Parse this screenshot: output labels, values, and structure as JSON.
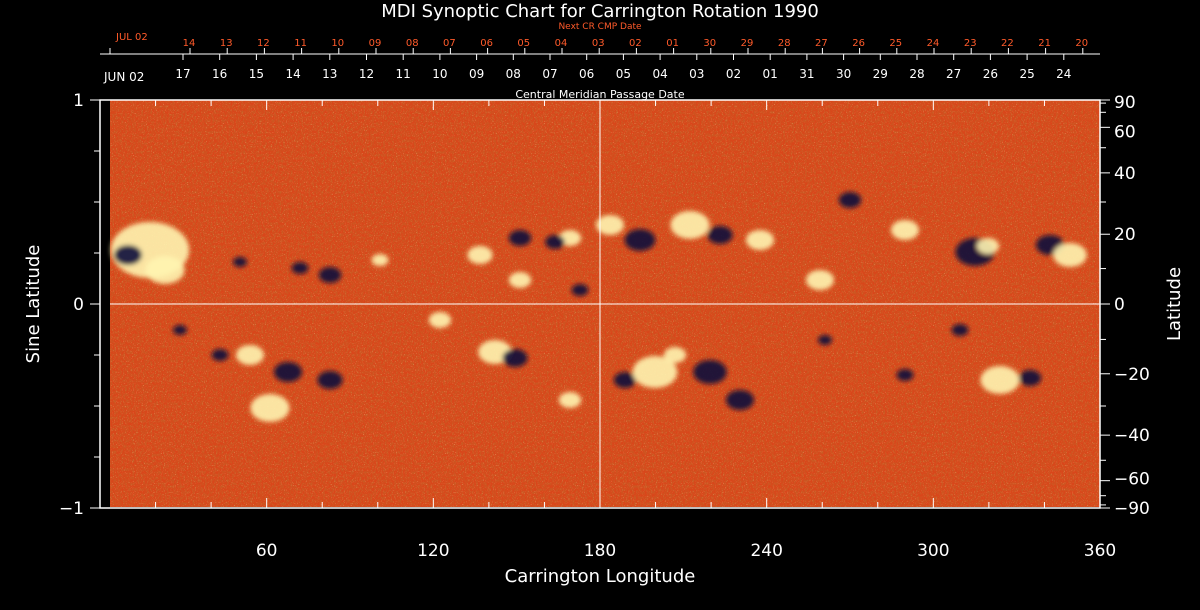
{
  "title": "MDI Synoptic Chart for Carrington Rotation 1990",
  "next_cr_label": "Next CR CMP Date",
  "cmp_label": "Central Meridian Passage Date",
  "next_cr_start_label": "JUL 02",
  "cmp_start_label": "JUN 02",
  "next_cr_dates": [
    "14",
    "13",
    "12",
    "11",
    "10",
    "09",
    "08",
    "07",
    "06",
    "05",
    "04",
    "03",
    "02",
    "01",
    "30",
    "29",
    "28",
    "27",
    "26",
    "25",
    "24",
    "23",
    "22",
    "21",
    "20"
  ],
  "cmp_dates": [
    "17",
    "16",
    "15",
    "14",
    "13",
    "12",
    "11",
    "10",
    "09",
    "08",
    "07",
    "06",
    "05",
    "04",
    "03",
    "02",
    "01",
    "31",
    "30",
    "29",
    "28",
    "27",
    "26",
    "25",
    "24"
  ],
  "x_axis": {
    "label": "Carrington Longitude",
    "ticks": [
      60,
      120,
      180,
      240,
      300,
      360
    ],
    "range": [
      0,
      360
    ]
  },
  "y_axis_left": {
    "label": "Sine Latitude",
    "ticks": [
      "1",
      "0",
      "−1"
    ]
  },
  "y_axis_right": {
    "label": "Latitude",
    "ticks": [
      90,
      60,
      40,
      20,
      0,
      -20,
      -40,
      -60,
      -90
    ],
    "tick_labels": [
      "90",
      "60",
      "40",
      "20",
      "0",
      "−20",
      "−40",
      "−60",
      "−90"
    ]
  },
  "colors": {
    "background": "#000000",
    "map_base": "#d9461a",
    "map_dark": "#8a1a08",
    "positive": "#fff4b0",
    "negative": "#0c0c3a",
    "red_text": "#ff5a2a"
  }
}
